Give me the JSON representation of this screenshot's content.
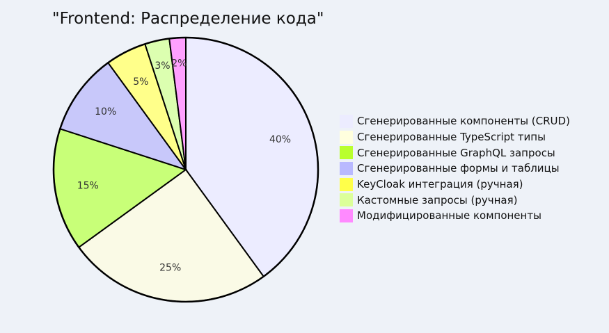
{
  "title": "\"Frontend: Распределение кода\"",
  "legend": [
    {
      "label": "Сгенерированные компоненты (CRUD)",
      "color": "#ececff"
    },
    {
      "label": "Сгенерированные TypeScript типы",
      "color": "#ffffde"
    },
    {
      "label": "Сгенерированные GraphQL запросы",
      "color": "#b9ff2e"
    },
    {
      "label": "Сгенерированные формы и таблицы",
      "color": "#b9b9ff"
    },
    {
      "label": "KeyCloak интеграция (ручная)",
      "color": "#ffff4a"
    },
    {
      "label": "Кастомные запросы (ручная)",
      "color": "#dcff9a"
    },
    {
      "label": "Модифицированные компоненты",
      "color": "#ff8aff"
    }
  ],
  "chart_data": {
    "type": "pie",
    "title": "\"Frontend: Распределение кода\"",
    "categories": [
      "Сгенерированные компоненты (CRUD)",
      "Сгенерированные TypeScript типы",
      "Сгенерированные GraphQL запросы",
      "Сгенерированные формы и таблицы",
      "KeyCloak интеграция (ручная)",
      "Кастомные запросы (ручная)",
      "Модифицированные компоненты"
    ],
    "values": [
      40,
      25,
      15,
      10,
      5,
      3,
      2
    ],
    "labels": [
      "40%",
      "25%",
      "15%",
      "10%",
      "5%",
      "3%",
      "2%"
    ],
    "slice_colors": [
      "#ececff",
      "#fafae6",
      "#c8ff78",
      "#c8c8fa",
      "#ffff8a",
      "#dcffb0",
      "#ffa0ff"
    ],
    "legend_position": "right",
    "start_angle": "top, clockwise"
  }
}
